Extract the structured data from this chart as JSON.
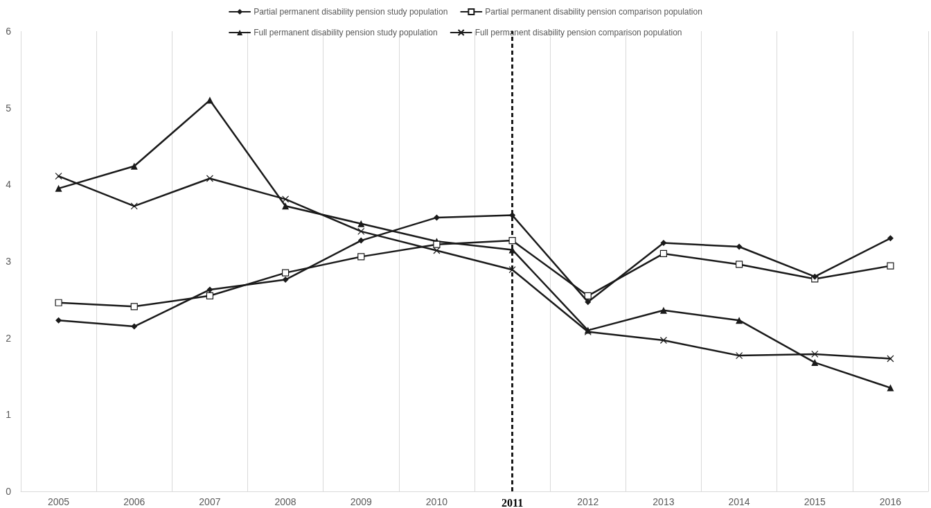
{
  "chart_data": {
    "type": "line",
    "categories": [
      "2005",
      "2006",
      "2007",
      "2008",
      "2009",
      "2010",
      "2011",
      "2012",
      "2013",
      "2014",
      "2015",
      "2016"
    ],
    "series": [
      {
        "name": "Partial permanent disability pension study population",
        "color": "#1a1a1a",
        "marker": "diamond",
        "values": [
          2.23,
          2.15,
          2.63,
          2.76,
          3.27,
          3.57,
          3.6,
          2.47,
          3.24,
          3.19,
          2.8,
          3.3
        ]
      },
      {
        "name": "Partial permanent disability pension comparison population",
        "color": "#1a1a1a",
        "marker": "square",
        "values": [
          2.46,
          2.41,
          2.55,
          2.85,
          3.06,
          3.22,
          3.27,
          2.55,
          3.1,
          2.96,
          2.77,
          2.94
        ]
      },
      {
        "name": "Full permanent disability pension study population",
        "color": "#1a1a1a",
        "marker": "triangle",
        "values": [
          3.95,
          4.24,
          5.1,
          3.72,
          3.49,
          3.26,
          3.15,
          2.1,
          2.36,
          2.23,
          1.68,
          1.35
        ]
      },
      {
        "name": "Full permanent disability pension comparison population",
        "color": "#1a1a1a",
        "marker": "cross",
        "values": [
          4.11,
          3.72,
          4.08,
          3.81,
          3.39,
          3.14,
          2.89,
          2.08,
          1.97,
          1.77,
          1.79,
          1.73
        ]
      }
    ],
    "ylim": [
      0,
      6
    ],
    "yticks": [
      0,
      1,
      2,
      3,
      4,
      5,
      6
    ],
    "grid": "x",
    "legend": "top",
    "line_style": "solid",
    "ref_lines": [
      {
        "axis": "x",
        "value": "2011",
        "color": "#1a1a1a",
        "line_style": "dashed"
      }
    ]
  }
}
